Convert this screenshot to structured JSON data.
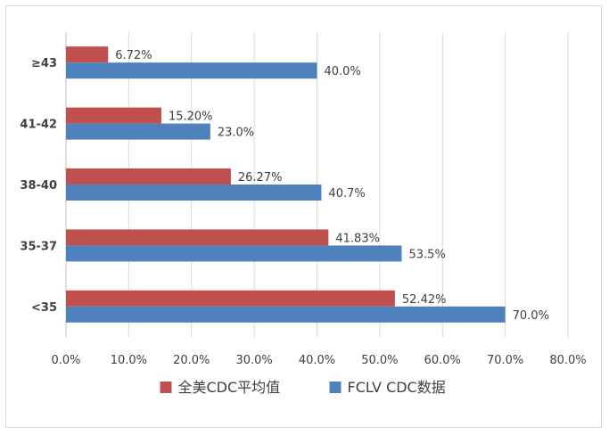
{
  "chart_data": {
    "type": "bar",
    "orientation": "horizontal",
    "categories": [
      "≥43",
      "41-42",
      "38-40",
      "35-37",
      "<35"
    ],
    "series": [
      {
        "name": "全美CDC平均值",
        "color": "#c0504d",
        "values": [
          6.72,
          15.2,
          26.27,
          41.83,
          52.42
        ],
        "labels": [
          "6.72%",
          "15.20%",
          "26.27%",
          "41.83%",
          "52.42%"
        ]
      },
      {
        "name": "FCLV CDC数据",
        "color": "#4f81bd",
        "values": [
          40.0,
          23.0,
          40.7,
          53.5,
          70.0
        ],
        "labels": [
          "40.0%",
          "23.0%",
          "40.7%",
          "53.5%",
          "70.0%"
        ]
      }
    ],
    "xlim": [
      0,
      80
    ],
    "xticks": [
      "0.0%",
      "10.0%",
      "20.0%",
      "30.0%",
      "40.0%",
      "50.0%",
      "60.0%",
      "70.0%",
      "80.0%"
    ],
    "grid": true,
    "legend": "bottom",
    "title": "",
    "xlabel": "",
    "ylabel": ""
  }
}
